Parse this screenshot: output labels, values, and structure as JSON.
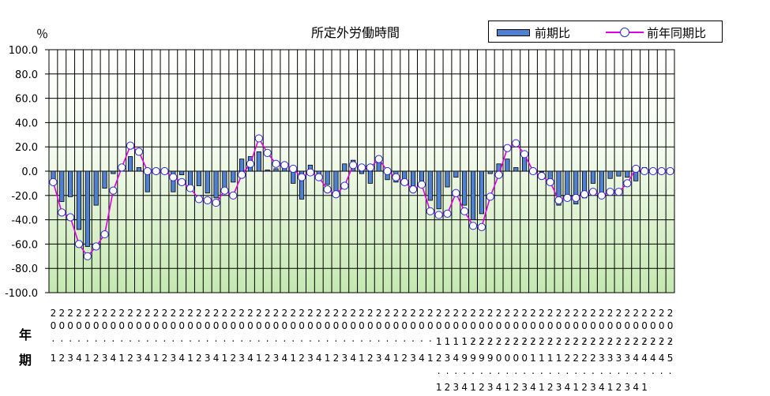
{
  "chart_data": {
    "type": "bar+line",
    "title": "所定外労働時間",
    "ylabel": "％",
    "ylim": [
      -100,
      100
    ],
    "yticks": [
      "100.0",
      "80.0",
      "60.0",
      "40.0",
      "20.0",
      "0.0",
      "-20.0",
      "-40.0",
      "-60.0",
      "-80.0",
      "-100.0"
    ],
    "row_labels": [
      "年",
      "期"
    ],
    "x_year_tens": [
      "2",
      "2",
      "2",
      "2",
      "2",
      "2",
      "2",
      "2",
      "2",
      "2",
      "2",
      "2",
      "2",
      "2",
      "2",
      "2",
      "2",
      "2",
      "2",
      "2",
      "2",
      "2",
      "2",
      "2",
      "2",
      "2",
      "2",
      "2",
      "2",
      "2",
      "2",
      "2",
      "2",
      "2",
      "2",
      "2",
      "2",
      "2",
      "2",
      "2",
      "2",
      "2",
      "2",
      "2",
      "2",
      "2",
      "2",
      "2",
      "2",
      "2",
      "2",
      "2",
      "2",
      "2",
      "2",
      "2",
      "2",
      "2",
      "2",
      "2",
      "2",
      "2",
      "2",
      "2",
      "2",
      "2",
      "2",
      "2",
      "2",
      "2",
      "2",
      "2",
      "2"
    ],
    "x_year_digit": [
      "0",
      "0",
      "0",
      "0",
      "0",
      "0",
      "0",
      "0",
      "0",
      "0",
      "0",
      "0",
      "0",
      "0",
      "0",
      "0",
      "0",
      "0",
      "0",
      "0",
      "0",
      "0",
      "0",
      "0",
      "0",
      "0",
      "0",
      "0",
      "0",
      "0",
      "0",
      "0",
      "0",
      "0",
      "0",
      "0",
      "0",
      "0",
      "0",
      "0",
      "0",
      "0",
      "0",
      "0",
      "0",
      "0",
      "0",
      "0",
      "0",
      "0",
      "0",
      "0",
      "0",
      "0",
      "0",
      "0",
      "0",
      "0",
      "0",
      "0",
      "0",
      "0",
      "0",
      "0",
      "0",
      "0",
      "0",
      "0",
      "0",
      "0",
      "0",
      "0",
      "0"
    ],
    "x_dot1": [
      ".",
      ".",
      ".",
      ".",
      ".",
      ".",
      ".",
      ".",
      ".",
      ".",
      ".",
      ".",
      ".",
      ".",
      ".",
      ".",
      ".",
      ".",
      ".",
      ".",
      ".",
      ".",
      ".",
      ".",
      ".",
      ".",
      ".",
      ".",
      ".",
      ".",
      ".",
      ".",
      ".",
      ".",
      ".",
      ".",
      ".",
      ".",
      ".",
      ".",
      ".",
      ".",
      ".",
      ".",
      ".",
      ".",
      ".",
      ".",
      ".",
      ".",
      ".",
      ".",
      ".",
      ".",
      ".",
      ".",
      ".",
      ".",
      ".",
      ".",
      ".",
      ".",
      ".",
      ".",
      ".",
      ".",
      ".",
      ".",
      ".",
      ".",
      ".",
      ".",
      "."
    ],
    "x_extra": [
      "",
      "",
      "",
      "",
      "",
      "",
      "",
      "",
      "",
      "",
      "",
      "",
      "",
      "",
      "",
      "",
      "",
      "",
      "",
      "",
      "",
      "",
      "",
      "",
      "",
      "",
      "",
      "",
      "",
      "",
      "",
      "",
      "",
      "",
      "",
      "",
      "",
      "",
      "",
      "",
      "",
      "",
      "",
      "",
      "",
      "1",
      "1",
      "1",
      "1",
      "2",
      "2",
      "2",
      "2",
      "2",
      "2",
      "2",
      "2",
      "2",
      "2",
      "2",
      "2",
      "2",
      "2",
      "2",
      "2",
      "2",
      "2",
      "2",
      "2",
      "2",
      "2",
      "2",
      "2"
    ],
    "x_quarter": [
      "1",
      "2",
      "3",
      "4",
      "1",
      "2",
      "3",
      "4",
      "1",
      "2",
      "3",
      "4",
      "1",
      "2",
      "3",
      "4",
      "1",
      "2",
      "3",
      "4",
      "1",
      "2",
      "3",
      "4",
      "1",
      "2",
      "3",
      "4",
      "1",
      "2",
      "3",
      "4",
      "1",
      "2",
      "3",
      "4",
      "1",
      "2",
      "3",
      "4",
      "1",
      "2",
      "3",
      "4",
      "1",
      "2",
      "3",
      "4",
      "9",
      "9",
      "9",
      "9",
      "0",
      "0",
      "0",
      "0",
      "1",
      "1",
      "1",
      "1",
      "2",
      "2",
      "2",
      "2",
      "3",
      "3",
      "3",
      "3",
      "4",
      "4",
      "4",
      "4",
      "5"
    ],
    "x_dot2": [
      "",
      "",
      "",
      "",
      "",
      "",
      "",
      "",
      "",
      "",
      "",
      "",
      "",
      "",
      "",
      "",
      "",
      "",
      "",
      "",
      "",
      "",
      "",
      "",
      "",
      "",
      "",
      "",
      "",
      "",
      "",
      "",
      "",
      "",
      "",
      "",
      "",
      "",
      "",
      "",
      "",
      "",
      "",
      "",
      "",
      ".",
      ".",
      ".",
      ".",
      ".",
      ".",
      ".",
      ".",
      ".",
      ".",
      ".",
      ".",
      ".",
      ".",
      ".",
      ".",
      ".",
      ".",
      ".",
      ".",
      ".",
      ".",
      ".",
      ".",
      ".",
      ".",
      ".",
      "."
    ],
    "x_quarter2": [
      "",
      "",
      "",
      "",
      "",
      "",
      "",
      "",
      "",
      "",
      "",
      "",
      "",
      "",
      "",
      "",
      "",
      "",
      "",
      "",
      "",
      "",
      "",
      "",
      "",
      "",
      "",
      "",
      "",
      "",
      "",
      "",
      "",
      "",
      "",
      "",
      "",
      "",
      "",
      "",
      "",
      "",
      "",
      "",
      "",
      "1",
      "2",
      "3",
      "4",
      "1",
      "2",
      "3",
      "4",
      "1",
      "2",
      "3",
      "4",
      "1",
      "2",
      "3",
      "4",
      "1",
      "2",
      "3",
      "4",
      "1",
      "2",
      "3",
      "4",
      "1"
    ],
    "series": [
      {
        "name": "前期比",
        "type": "bar",
        "values": [
          -9,
          -25,
          -21,
          -48,
          -62,
          -28,
          -14,
          -2,
          2,
          12,
          3,
          -17,
          0,
          0,
          -17,
          -3,
          -12,
          -12,
          -18,
          -22,
          -15,
          -9,
          10,
          12,
          16,
          1,
          2,
          3,
          -10,
          -23,
          5,
          -3,
          -11,
          -17,
          6,
          9,
          -2,
          -10,
          9,
          -7,
          -9,
          -8,
          -13,
          -8,
          -24,
          -31,
          -13,
          -5,
          -28,
          -40,
          -35,
          -2,
          6,
          10,
          3,
          12,
          0,
          0,
          -10,
          -28,
          -23,
          -27,
          -22,
          -10,
          -18,
          -6,
          -4,
          -5,
          -8,
          3,
          0,
          0,
          0
        ],
        "color": "#4f81d3"
      },
      {
        "name": "前年同期比",
        "type": "line",
        "values": [
          -9,
          -34,
          -38,
          -60,
          -70,
          -62,
          -52,
          -16,
          3,
          21,
          16,
          0,
          0,
          0,
          -5,
          -9,
          -14,
          -23,
          -24,
          -26,
          -16,
          -20,
          -3,
          6,
          27,
          15,
          6,
          5,
          2,
          -5,
          -1,
          -5,
          -15,
          -19,
          -12,
          5,
          3,
          3,
          10,
          0,
          -5,
          -9,
          -15,
          -11,
          -33,
          -36,
          -35,
          -18,
          -33,
          -45,
          -46,
          -21,
          -3,
          19,
          23,
          14,
          0,
          -4,
          -9,
          -24,
          -22,
          -22,
          -19,
          -17,
          -20,
          -17,
          -17,
          -10,
          2,
          0,
          0,
          0,
          0
        ],
        "color": "#e000e0"
      }
    ],
    "grid": true,
    "legend": "top-right"
  }
}
